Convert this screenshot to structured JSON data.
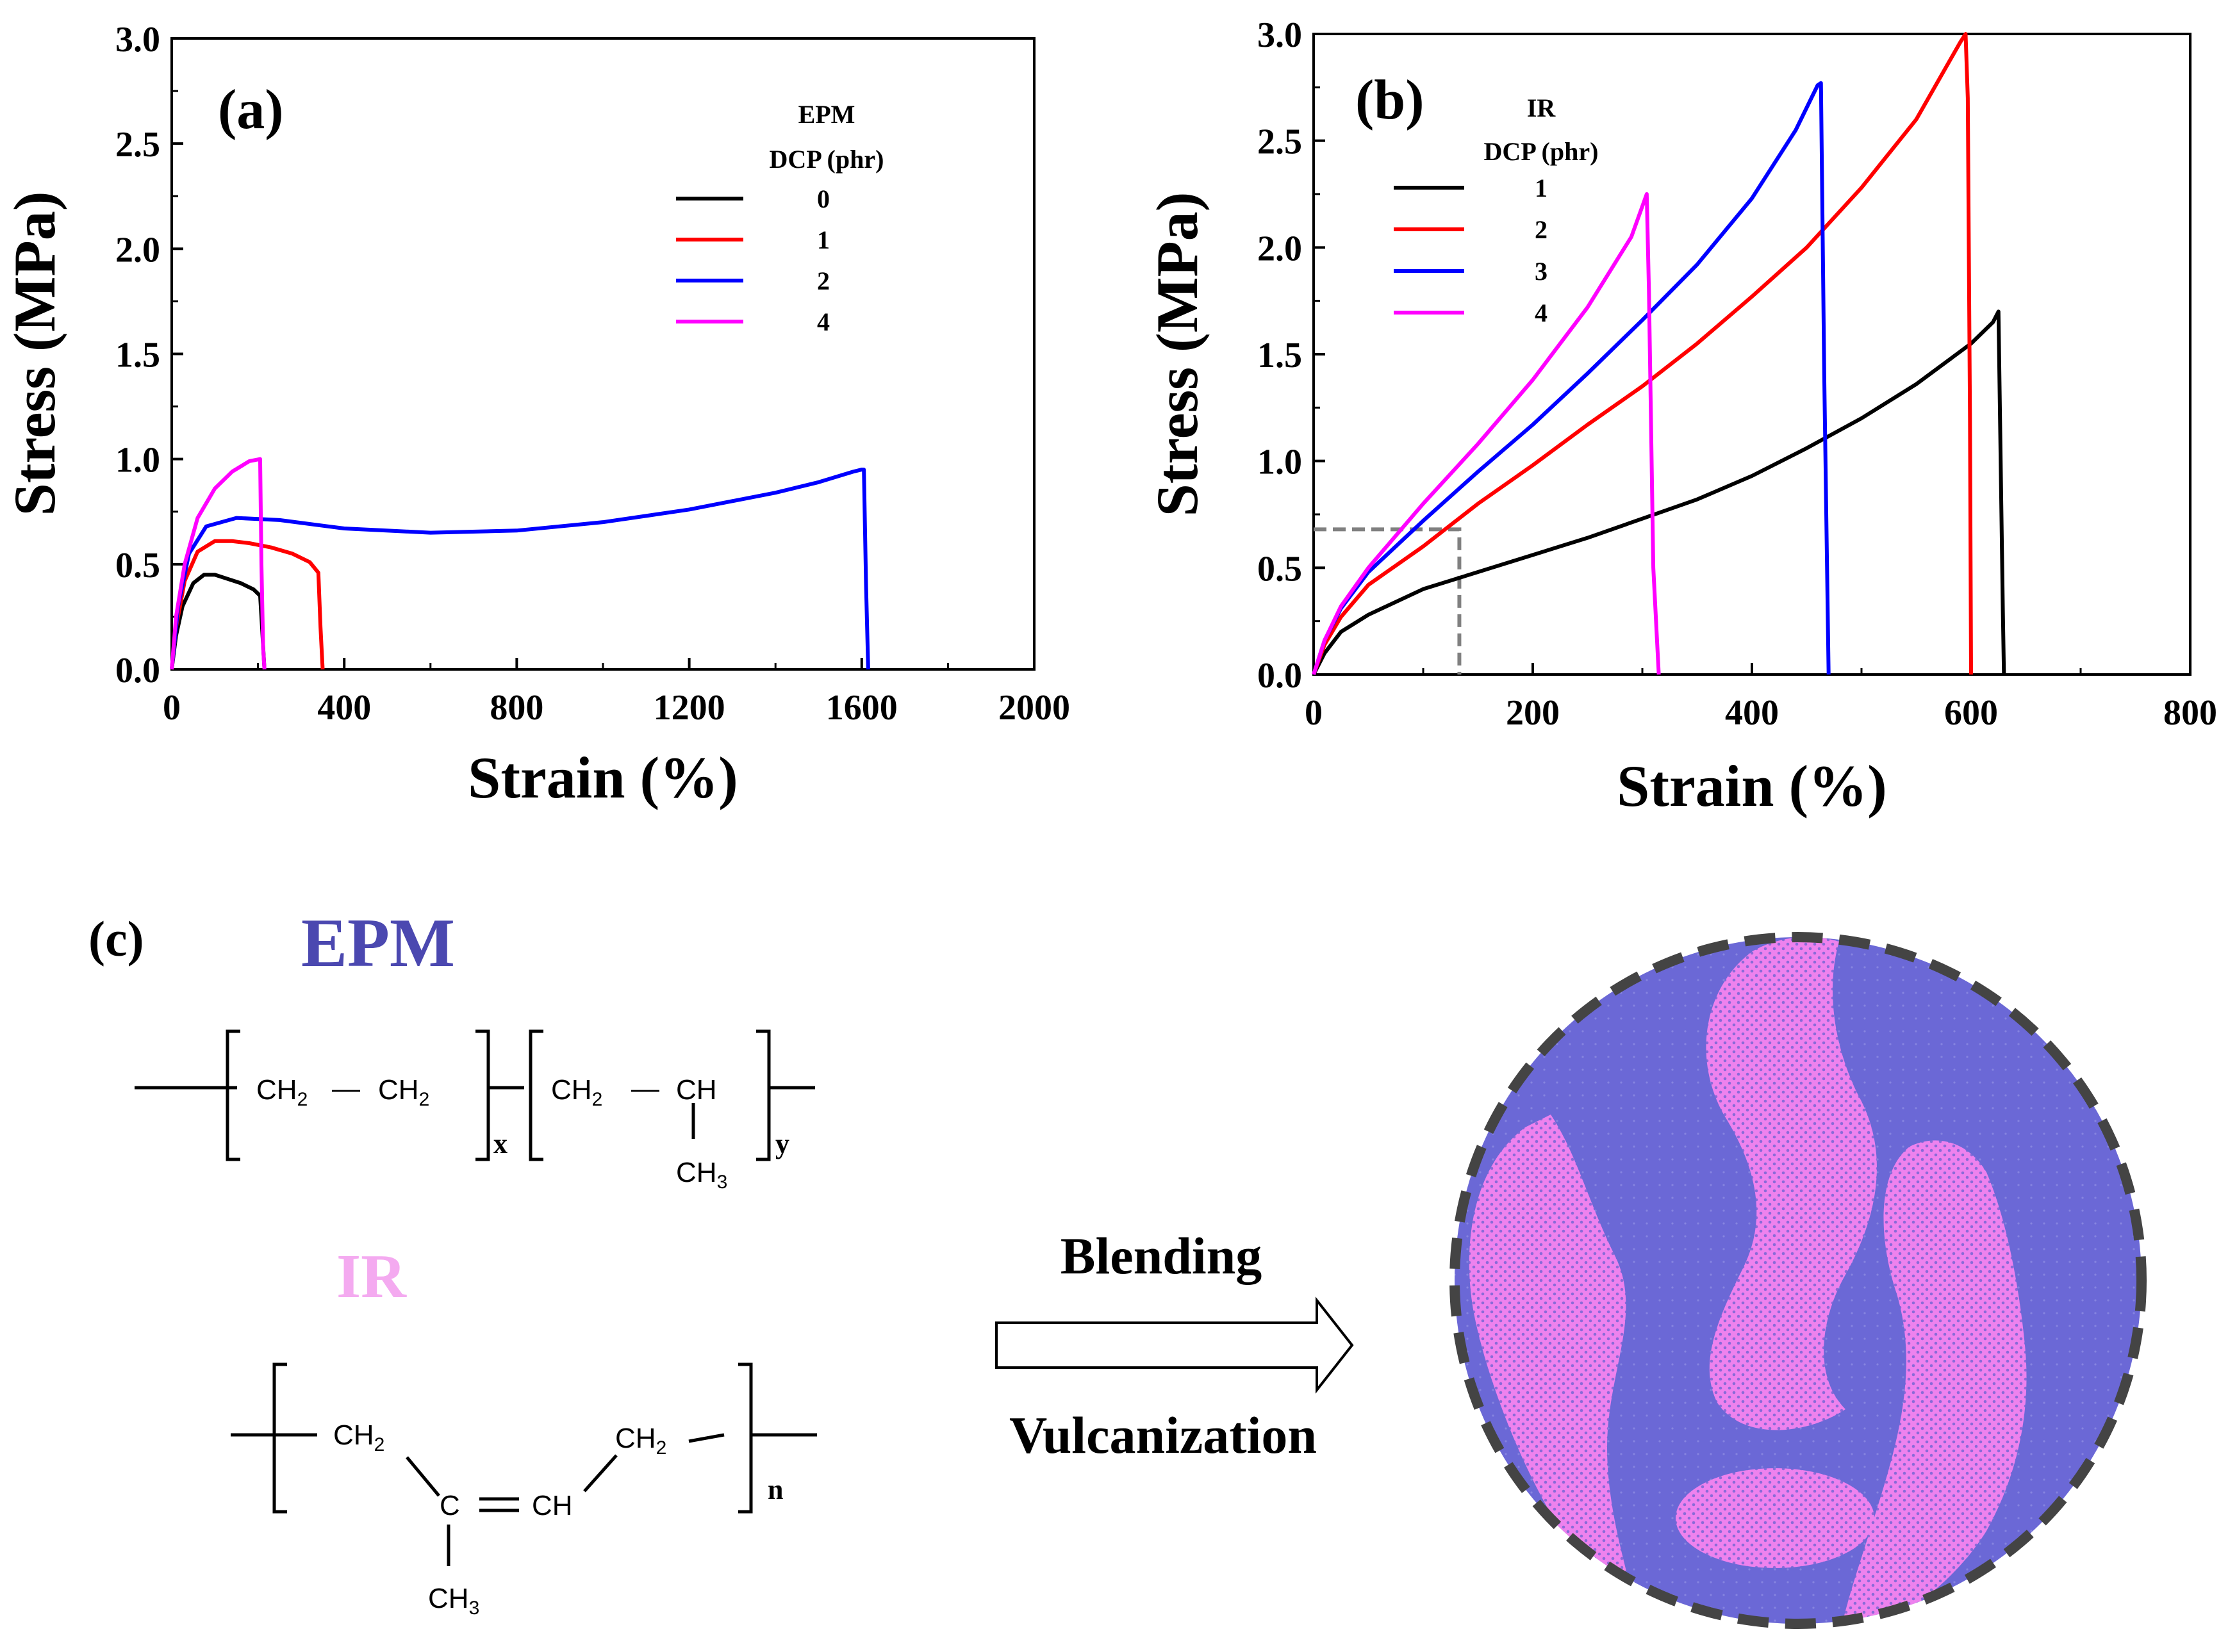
{
  "chart_data": [
    {
      "panel": "(a)",
      "type": "line",
      "xlabel": "Strain (%)",
      "ylabel": "Stress (MPa)",
      "xlim": [
        0,
        2000
      ],
      "ylim": [
        0,
        3.0
      ],
      "xticks": [
        "0",
        "400",
        "800",
        "1200",
        "1600",
        "2000"
      ],
      "yticks": [
        "0.0",
        "0.5",
        "1.0",
        "1.5",
        "2.0",
        "2.5",
        "3.0"
      ],
      "legend_title": [
        "EPM",
        "DCP (phr)"
      ],
      "legend_position": "top-right",
      "series": [
        {
          "name": "0",
          "color": "#000000",
          "x": [
            0,
            10,
            25,
            50,
            75,
            100,
            130,
            160,
            190,
            205,
            210,
            215
          ],
          "y": [
            0,
            0.16,
            0.3,
            0.41,
            0.45,
            0.45,
            0.43,
            0.41,
            0.38,
            0.35,
            0.18,
            0
          ]
        },
        {
          "name": "1",
          "color": "#ff0000",
          "x": [
            0,
            10,
            30,
            60,
            100,
            140,
            180,
            230,
            280,
            320,
            340,
            345,
            350
          ],
          "y": [
            0,
            0.2,
            0.42,
            0.56,
            0.61,
            0.61,
            0.6,
            0.58,
            0.55,
            0.51,
            0.46,
            0.2,
            0
          ]
        },
        {
          "name": "2",
          "color": "#0000ff",
          "x": [
            0,
            15,
            40,
            80,
            150,
            250,
            400,
            600,
            800,
            1000,
            1200,
            1400,
            1500,
            1580,
            1600,
            1605,
            1610,
            1615
          ],
          "y": [
            0,
            0.3,
            0.55,
            0.68,
            0.72,
            0.71,
            0.67,
            0.65,
            0.66,
            0.7,
            0.76,
            0.84,
            0.89,
            0.94,
            0.95,
            0.95,
            0.4,
            0
          ]
        },
        {
          "name": "4",
          "color": "#ff00ff",
          "x": [
            0,
            10,
            30,
            60,
            100,
            140,
            180,
            205,
            208,
            212,
            215
          ],
          "y": [
            0,
            0.25,
            0.5,
            0.72,
            0.86,
            0.94,
            0.99,
            1.0,
            0.5,
            0.1,
            0
          ]
        }
      ]
    },
    {
      "panel": "(b)",
      "type": "line",
      "xlabel": "Strain (%)",
      "ylabel": "Stress (MPa)",
      "xlim": [
        0,
        800
      ],
      "ylim": [
        0,
        3.0
      ],
      "xticks": [
        "0",
        "200",
        "400",
        "600",
        "800"
      ],
      "yticks": [
        "0.0",
        "0.5",
        "1.0",
        "1.5",
        "2.0",
        "2.5",
        "3.0"
      ],
      "legend_title": [
        "IR",
        "DCP (phr)"
      ],
      "legend_position": "top-left",
      "reference_lines": [
        {
          "x": 133,
          "y": 0.68,
          "style": "dashed",
          "color": "#808080"
        }
      ],
      "series": [
        {
          "name": "1",
          "color": "#000000",
          "x": [
            0,
            10,
            25,
            50,
            100,
            150,
            200,
            250,
            300,
            350,
            400,
            450,
            500,
            550,
            600,
            620,
            625,
            627,
            629,
            630
          ],
          "y": [
            0,
            0.1,
            0.2,
            0.28,
            0.4,
            0.48,
            0.56,
            0.64,
            0.73,
            0.82,
            0.93,
            1.06,
            1.2,
            1.36,
            1.55,
            1.65,
            1.7,
            1.0,
            0.3,
            0
          ]
        },
        {
          "name": "2",
          "color": "#ff0000",
          "x": [
            0,
            10,
            25,
            50,
            100,
            150,
            200,
            250,
            300,
            350,
            400,
            450,
            500,
            550,
            590,
            595,
            597,
            599,
            600
          ],
          "y": [
            0,
            0.14,
            0.27,
            0.42,
            0.6,
            0.8,
            0.98,
            1.17,
            1.35,
            1.55,
            1.77,
            2.0,
            2.28,
            2.6,
            2.96,
            3.0,
            2.7,
            1.2,
            0
          ]
        },
        {
          "name": "3",
          "color": "#0000ff",
          "x": [
            0,
            10,
            25,
            50,
            100,
            150,
            200,
            250,
            300,
            350,
            400,
            440,
            460,
            463,
            466,
            470
          ],
          "y": [
            0,
            0.16,
            0.31,
            0.48,
            0.72,
            0.95,
            1.17,
            1.41,
            1.66,
            1.92,
            2.23,
            2.55,
            2.76,
            2.77,
            1.4,
            0
          ]
        },
        {
          "name": "4",
          "color": "#ff00ff",
          "x": [
            0,
            10,
            25,
            50,
            100,
            150,
            200,
            250,
            290,
            304,
            306,
            310,
            315
          ],
          "y": [
            0,
            0.16,
            0.32,
            0.5,
            0.8,
            1.08,
            1.38,
            1.72,
            2.05,
            2.25,
            1.8,
            0.5,
            0
          ]
        }
      ]
    }
  ],
  "scheme": {
    "panel_label": "(c)",
    "epm_title": "EPM",
    "ir_title": "IR",
    "epm_formula": {
      "u1a": "CH",
      "u1a_sub": "2",
      "dash": "—",
      "u1b": "CH",
      "u1b_sub": "2",
      "x": "x",
      "u2a": "CH",
      "u2a_sub": "2",
      "u2b": "CH",
      "u2c": "CH",
      "u2c_sub": "3",
      "y": "y"
    },
    "ir_formula": {
      "a": "CH",
      "a_sub": "2",
      "c": "C",
      "ch": "CH",
      "b": "CH",
      "b_sub": "2",
      "m": "CH",
      "m_sub": "3",
      "n": "n"
    },
    "arrow_top_label": "Blending",
    "arrow_bottom_label": "Vulcanization",
    "colors": {
      "epm": "#6b68d6",
      "ir": "#ee82ee",
      "border": "#444444"
    }
  }
}
